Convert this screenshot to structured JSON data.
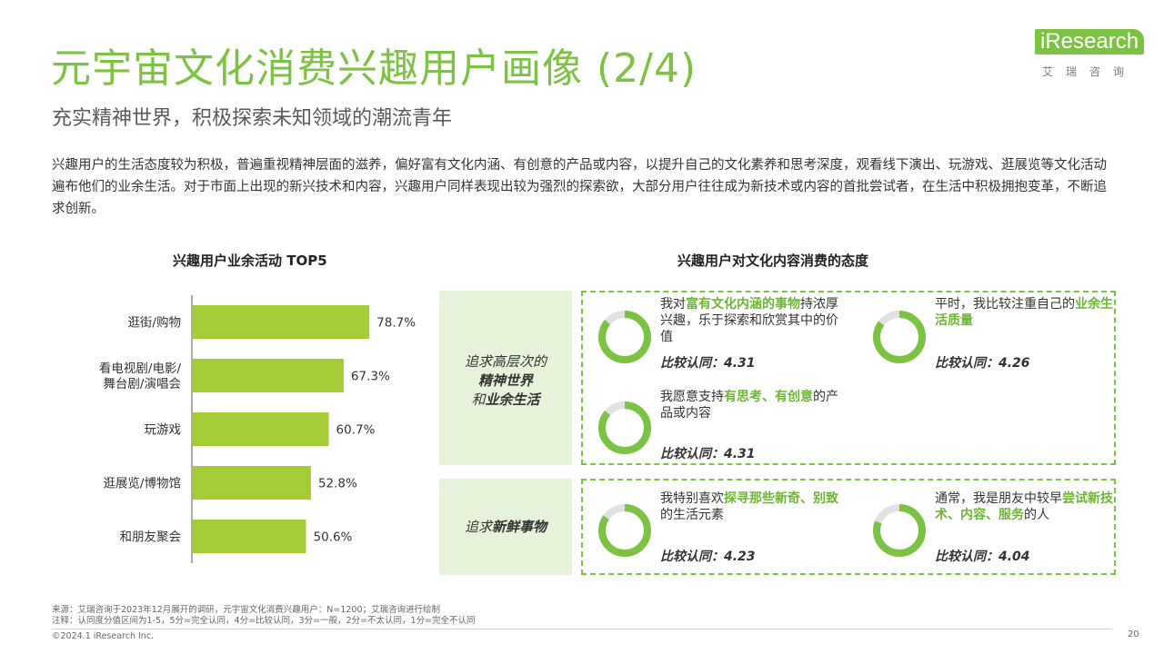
{
  "header": {
    "title": "元宇宙文化消费兴趣用户画像 (2/4)",
    "subtitle": "充实精神世界，积极探索未知领域的潮流青年",
    "intro": "兴趣用户的生活态度较为积极，普遍重视精神层面的滋养，偏好富有文化内涵、有创意的产品或内容，以提升自己的文化素养和思考深度，观看线下演出、玩游戏、逛展览等文化活动遍布他们的业余生活。对于市面上出现的新兴技术和内容，兴趣用户同样表现出较为强烈的探索欲，大部分用户往往成为新技术或内容的首批尝试者，在生活中积极拥抱变革，不断追求创新。"
  },
  "logo": {
    "word": "iResearch",
    "cn": "艾瑞咨询"
  },
  "chart_data": {
    "type": "bar",
    "orientation": "horizontal",
    "title": "兴趣用户业余活动 TOP5",
    "categories": [
      "逛街/购物",
      "看电视剧/电影/\n舞台剧/演唱会",
      "玩游戏",
      "逛展览/博物馆",
      "和朋友聚会"
    ],
    "values": [
      78.7,
      67.3,
      60.7,
      52.8,
      50.6
    ],
    "value_suffix": "%",
    "xlim": [
      0,
      100
    ],
    "color": "#a4cc37",
    "grid": false
  },
  "attitude": {
    "title": "兴趣用户对文化内容消费的态度",
    "accent": "#7cc243",
    "ring_track": "#e2e2e2",
    "groups": [
      {
        "label_pre": "追求高层次的",
        "label_bold": "精神世界",
        "label_post_pre": "和",
        "label_post_bold": "业余生活",
        "items": [
          {
            "pre": "我对",
            "hl": "富有文化内涵的事物",
            "post": "持浓厚兴趣，乐于探索和欣赏其中的价值",
            "score_label": "比较认同：",
            "score": "4.31",
            "value": 4.31
          },
          {
            "pre": "平时，我比较注重自己的",
            "hl": "业余生活质量",
            "post": "",
            "score_label": "比较认同：",
            "score": "4.26",
            "value": 4.26
          },
          {
            "pre": "我愿意支持",
            "hl": "有思考、有创意",
            "post": "的产品或内容",
            "score_label": "比较认同：",
            "score": "4.31",
            "value": 4.31
          }
        ]
      },
      {
        "label_pre": "追求",
        "label_bold": "新鲜事物",
        "items": [
          {
            "pre": "我特别喜欢",
            "hl": "探寻那些新奇、别致",
            "post": "的生活元素",
            "score_label": "比较认同：",
            "score": "4.23",
            "value": 4.23
          },
          {
            "pre": "通常，我是朋友中较早",
            "hl": "尝试新技术、内容、服务",
            "post": "的人",
            "score_label": "比较认同：",
            "score": "4.04",
            "value": 4.04
          }
        ]
      }
    ],
    "scale_max": 5
  },
  "footer": {
    "source": "来源：艾瑞咨询于2023年12月展开的调研，元宇宙文化消费兴趣用户：N=1200；艾瑞咨询进行绘制",
    "note": "注释：认同度分值区间为1-5，5分=完全认同，4分=比较认同，3分=一般，2分=不太认同，1分=完全不认同",
    "copyright": "©2024.1 iResearch Inc.",
    "page": "20"
  }
}
